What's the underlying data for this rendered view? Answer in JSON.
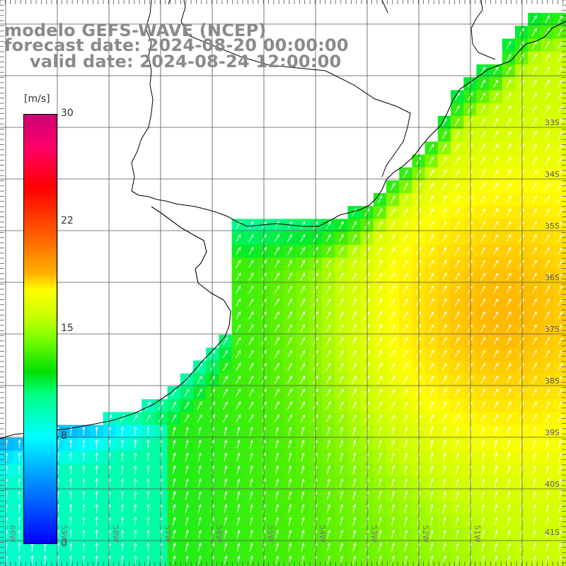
{
  "title": {
    "model": "modelo GEFS-WAVE (NCEP)",
    "forecast": "forecast date: 2024-08-20 00:00:00",
    "valid": "valid date: 2024-08-24 12:00:00"
  },
  "colorbar": {
    "unit": "[m/s]",
    "ticks": [
      {
        "value": 30,
        "label": "30"
      },
      {
        "value": 22,
        "label": "22"
      },
      {
        "value": 15,
        "label": "15"
      },
      {
        "value": 8,
        "label": "8"
      },
      {
        "value": 0,
        "label": "0"
      }
    ],
    "min": 0,
    "max": 30
  },
  "map": {
    "lat_labels": [
      "33S",
      "34S",
      "35S",
      "36S",
      "37S",
      "38S",
      "39S",
      "40S",
      "41S"
    ],
    "lon_labels": [
      "60W",
      "59W",
      "58W",
      "57W",
      "56W",
      "55W",
      "54W",
      "53W",
      "52W",
      "51W"
    ],
    "land_color": "#ffffff",
    "arrow_color": "#ffffff",
    "wind_direction": "southwest to northeast"
  }
}
